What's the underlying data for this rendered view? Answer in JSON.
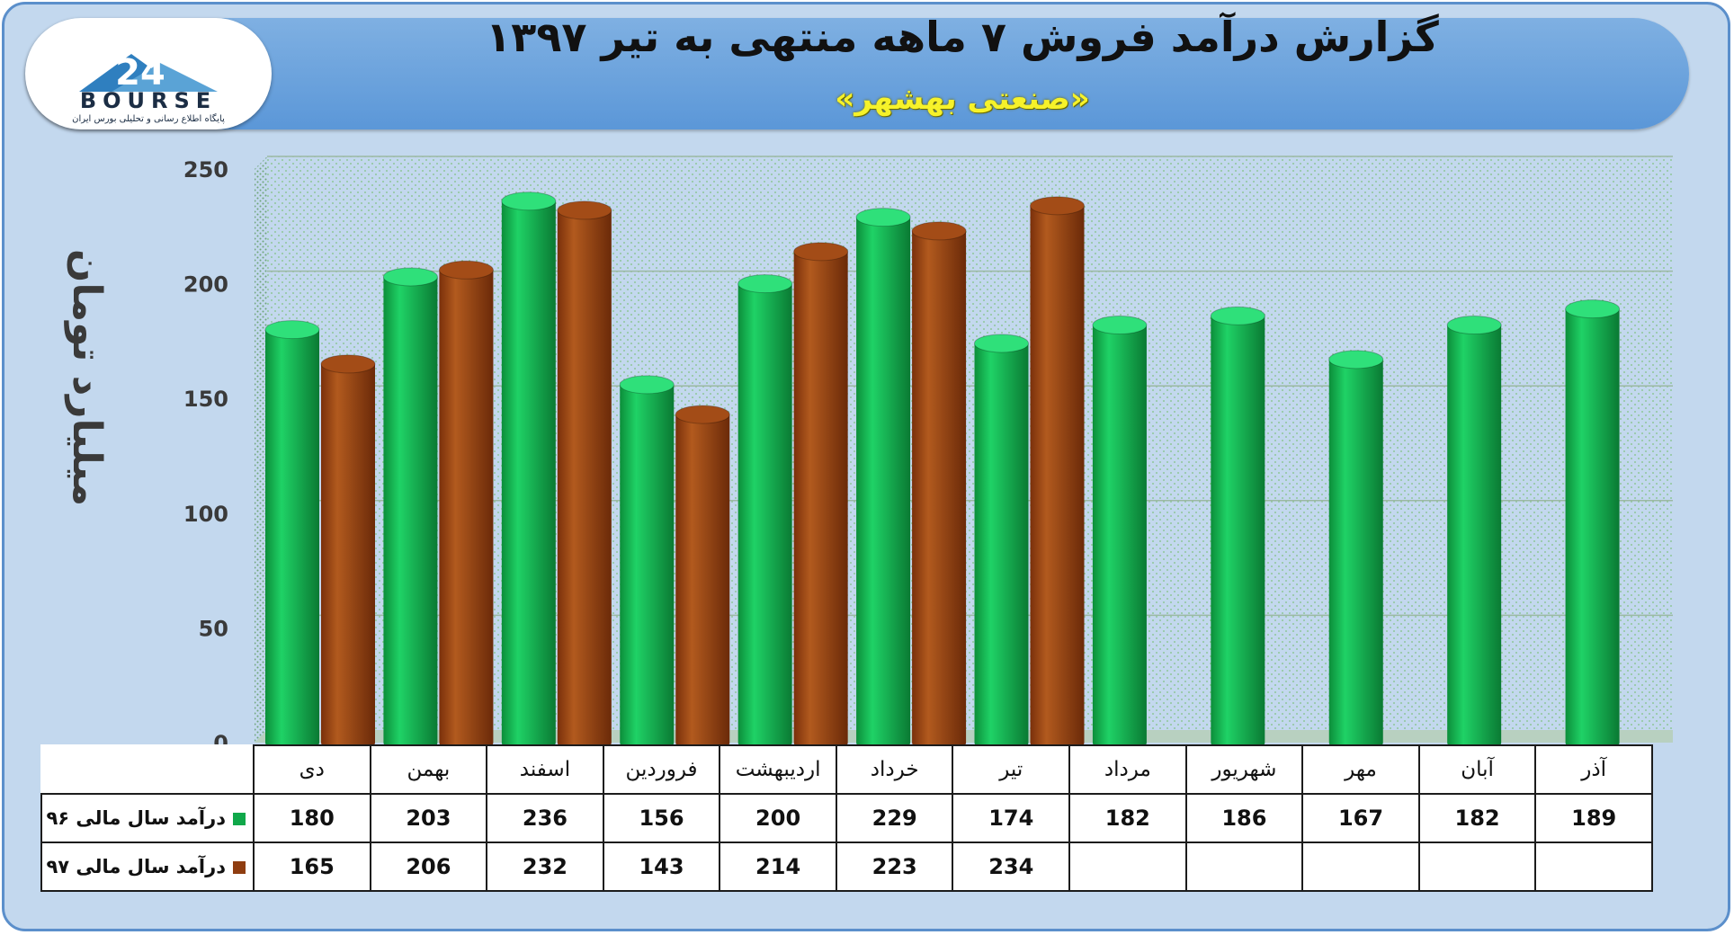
{
  "header": {
    "title": "گزارش درآمد فروش ۷ ماهه منتهی به تیر ۱۳۹۷",
    "subtitle": "«صنعتی بهشهر»",
    "logo_text": "BOURSE",
    "logo_tagline": "پایگاه اطلاع رسانی و تحلیلی بورس ایران",
    "logo_mark": "24"
  },
  "chart_data": {
    "type": "bar",
    "title": "گزارش درآمد فروش ۷ ماهه منتهی به تیر ۱۳۹۷",
    "subtitle": "«صنعتی بهشهر»",
    "ylabel": "میلیارد تومان",
    "xlabel": "",
    "ylim": [
      0,
      250
    ],
    "yticks": [
      0,
      50,
      100,
      150,
      200,
      250
    ],
    "grid": true,
    "categories": [
      "دی",
      "بهمن",
      "اسفند",
      "فروردین",
      "اردیبهشت",
      "خرداد",
      "تیر",
      "مرداد",
      "شهریور",
      "مهر",
      "آبان",
      "آذر"
    ],
    "series": [
      {
        "name": "درآمد سال مالی ۹۶",
        "color": "#10a84a",
        "values": [
          180,
          203,
          236,
          156,
          200,
          229,
          174,
          182,
          186,
          167,
          182,
          189
        ]
      },
      {
        "name": "درآمد سال مالی ۹۷",
        "color": "#8f3d10",
        "values": [
          165,
          206,
          232,
          143,
          214,
          223,
          234,
          null,
          null,
          null,
          null,
          null
        ]
      }
    ]
  }
}
